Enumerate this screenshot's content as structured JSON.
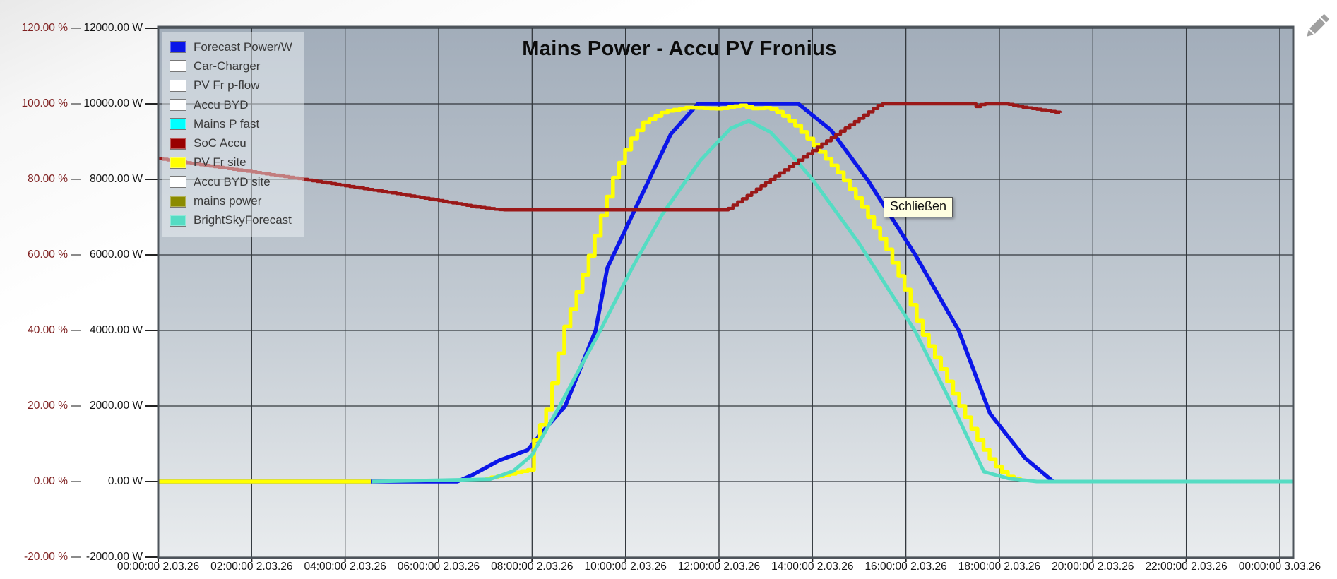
{
  "window": {
    "title": "Mains Power - Accu PV Fronius"
  },
  "tooltip": {
    "label": "Schließen"
  },
  "icons": {
    "edit_pencil_color": "#a0a0a0"
  },
  "colors": {
    "plot_bg_top": "#a2adba",
    "plot_bg_mid": "#c2cad2",
    "plot_bg_bottom": "#e9ecee",
    "grid": "#33383d",
    "plot_border": "#4d545b",
    "percent_axis_text": "#7e1f1f",
    "watt_axis_text": "#141414",
    "legend_bg": "rgba(245,248,251,0.45)",
    "tooltip_bg": "#ffffe1"
  },
  "legend": {
    "items": [
      {
        "label": "Forecast Power/W",
        "color": "#0b16e8"
      },
      {
        "label": "Car-Charger",
        "color": "#ffffff"
      },
      {
        "label": "PV Fr p-flow",
        "color": "#ffffff"
      },
      {
        "label": "Accu BYD",
        "color": "#ffffff"
      },
      {
        "label": "Mains P fast",
        "color": "#00ffff"
      },
      {
        "label": "SoC Accu",
        "color": "#990000"
      },
      {
        "label": "PV Fr site",
        "color": "#ffff00"
      },
      {
        "label": "Accu BYD site",
        "color": "#ffffff"
      },
      {
        "label": "mains power",
        "color": "#8b8b00"
      },
      {
        "label": "BrightSkyForecast",
        "color": "#55dcc3"
      }
    ]
  },
  "axes": {
    "percent": {
      "labels": [
        "120.00 %",
        "100.00 %",
        "80.00 %",
        "60.00 %",
        "40.00 %",
        "20.00 %",
        "0.00 %",
        "-20.00 %"
      ]
    },
    "watts": {
      "labels": [
        "12000.00 W",
        "10000.00 W",
        "8000.00 W",
        "6000.00 W",
        "4000.00 W",
        "2000.00 W",
        "0.00 W",
        "-2000.00 W"
      ]
    },
    "time": {
      "labels": [
        "00:00:00 2.03.26",
        "02:00:00 2.03.26",
        "04:00:00 2.03.26",
        "06:00:00 2.03.26",
        "08:00:00 2.03.26",
        "10:00:00 2.03.26",
        "12:00:00 2.03.26",
        "14:00:00 2.03.26",
        "16:00:00 2.03.26",
        "18:00:00 2.03.26",
        "20:00:00 2.03.26",
        "22:00:00 2.03.26",
        "00:00:00 3.03.26"
      ]
    }
  },
  "chart_data": {
    "type": "line",
    "title": "Mains Power - Accu PV Fronius",
    "grid": true,
    "legend_position": "top-left-inside",
    "x_axis": {
      "unit": "hours from 00:00 on 2.03.26",
      "min": 0,
      "max": 24.3,
      "gridline_every_hours": 2,
      "tick_labels": [
        "00:00:00 2.03.26",
        "02:00:00 2.03.26",
        "04:00:00 2.03.26",
        "06:00:00 2.03.26",
        "08:00:00 2.03.26",
        "10:00:00 2.03.26",
        "12:00:00 2.03.26",
        "14:00:00 2.03.26",
        "16:00:00 2.03.26",
        "18:00:00 2.03.26",
        "20:00:00 2.03.26",
        "22:00:00 2.03.26",
        "00:00:00 3.03.26"
      ]
    },
    "y_axis_percent": {
      "min": -20,
      "max": 120,
      "step": 20,
      "unit": "%"
    },
    "y_axis_watts": {
      "min": -2000,
      "max": 12000,
      "step": 2000,
      "unit": "W"
    },
    "series": [
      {
        "name": "Forecast Power/W",
        "axis": "W",
        "style": "line",
        "color": "#0b16e8",
        "width": 5.5,
        "visible": true,
        "points": [
          [
            0,
            0
          ],
          [
            6.4,
            0
          ],
          [
            6.7,
            160
          ],
          [
            7.3,
            560
          ],
          [
            7.9,
            830
          ],
          [
            8.25,
            1350
          ],
          [
            8.71,
            2000
          ],
          [
            9.36,
            4000
          ],
          [
            9.61,
            5650
          ],
          [
            10.2,
            7200
          ],
          [
            10.97,
            9200
          ],
          [
            11.55,
            10000
          ],
          [
            13.7,
            10000
          ],
          [
            14.4,
            9300
          ],
          [
            15.2,
            7950
          ],
          [
            16.2,
            6000
          ],
          [
            17.13,
            4000
          ],
          [
            17.8,
            1800
          ],
          [
            18.55,
            620
          ],
          [
            19.15,
            0
          ]
        ]
      },
      {
        "name": "PV Fr site",
        "axis": "W",
        "style": "steps",
        "step_hours": 0.13,
        "color": "#ffff00",
        "width": 5.5,
        "visible": true,
        "segments": [
          [
            [
              0,
              0
            ],
            [
              4.57,
              0
            ]
          ],
          [
            [
              7.0,
              80
            ],
            [
              7.5,
              200
            ],
            [
              7.95,
              320
            ],
            [
              8.02,
              1030
            ],
            [
              8.33,
              2000
            ],
            [
              8.66,
              4000
            ],
            [
              9.13,
              5650
            ],
            [
              9.46,
              7000
            ],
            [
              9.77,
              8200
            ],
            [
              10.07,
              9000
            ],
            [
              10.37,
              9500
            ],
            [
              10.82,
              9800
            ],
            [
              11.3,
              9900
            ],
            [
              12.0,
              9870
            ],
            [
              12.45,
              9960
            ],
            [
              12.75,
              9870
            ],
            [
              13.05,
              9900
            ],
            [
              13.3,
              9750
            ],
            [
              13.65,
              9400
            ],
            [
              14.1,
              8800
            ],
            [
              14.6,
              8100
            ],
            [
              15.1,
              7200
            ],
            [
              15.6,
              6100
            ],
            [
              16.0,
              5000
            ],
            [
              16.31,
              4000
            ],
            [
              16.72,
              3050
            ],
            [
              17.14,
              2000
            ],
            [
              17.55,
              1050
            ],
            [
              17.85,
              480
            ],
            [
              18.15,
              140
            ],
            [
              18.46,
              20
            ]
          ]
        ]
      },
      {
        "name": "BrightSkyForecast",
        "axis": "W",
        "style": "line",
        "color": "#55dcc3",
        "width": 5,
        "visible": true,
        "points": [
          [
            4.57,
            0
          ],
          [
            7.1,
            60
          ],
          [
            7.6,
            280
          ],
          [
            8.0,
            700
          ],
          [
            8.59,
            2000
          ],
          [
            9.0,
            2950
          ],
          [
            9.46,
            4000
          ],
          [
            10.14,
            5650
          ],
          [
            10.8,
            7100
          ],
          [
            11.6,
            8500
          ],
          [
            12.25,
            9350
          ],
          [
            12.64,
            9550
          ],
          [
            13.1,
            9250
          ],
          [
            13.55,
            8650
          ],
          [
            14.0,
            8000
          ],
          [
            15.0,
            6300
          ],
          [
            16.19,
            4000
          ],
          [
            17.0,
            2000
          ],
          [
            17.67,
            260
          ],
          [
            18.2,
            80
          ],
          [
            18.8,
            0
          ],
          [
            24.28,
            0
          ]
        ]
      },
      {
        "name": "SoC Accu",
        "axis": "%",
        "style": "steps",
        "step_hours": 0.1,
        "color": "#9a1818",
        "width": 4.5,
        "visible": true,
        "points": [
          [
            0,
            85.5
          ],
          [
            1,
            83.7
          ],
          [
            2,
            82.0
          ],
          [
            3,
            80.2
          ],
          [
            4,
            78.3
          ],
          [
            5,
            76.4
          ],
          [
            6,
            74.4
          ],
          [
            6.8,
            72.7
          ],
          [
            7.35,
            71.9
          ],
          [
            12.15,
            71.9
          ],
          [
            15.45,
            100
          ],
          [
            17.42,
            100
          ],
          [
            17.52,
            99.1
          ],
          [
            17.62,
            100
          ],
          [
            18.15,
            100
          ],
          [
            18.5,
            99.1
          ],
          [
            18.9,
            98.4
          ],
          [
            19.3,
            97.6
          ]
        ]
      },
      {
        "name": "Car-Charger",
        "axis": "W",
        "style": "line",
        "color": "#ffffff",
        "visible": false,
        "points": []
      },
      {
        "name": "PV Fr p-flow",
        "axis": "W",
        "style": "line",
        "color": "#ffffff",
        "visible": false,
        "points": []
      },
      {
        "name": "Accu BYD",
        "axis": "W",
        "style": "line",
        "color": "#ffffff",
        "visible": false,
        "points": []
      },
      {
        "name": "Mains P fast",
        "axis": "W",
        "style": "line",
        "color": "#00ffff",
        "visible": false,
        "points": []
      },
      {
        "name": "Accu BYD site",
        "axis": "W",
        "style": "line",
        "color": "#ffffff",
        "visible": false,
        "points": []
      },
      {
        "name": "mains power",
        "axis": "W",
        "style": "line",
        "color": "#8b8b00",
        "visible": false,
        "points": []
      }
    ]
  }
}
